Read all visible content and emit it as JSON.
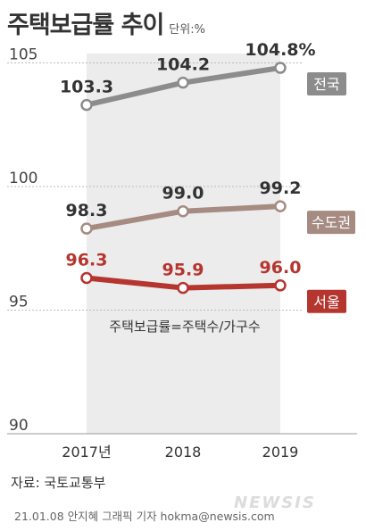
{
  "title": "주택보급률 추이",
  "unit_label": "단위:%",
  "formula_note": "주택보급률=주택수/가구수",
  "source": "자료: 국토교통부",
  "footer": "21.01.08 안지혜 그래픽 기자 hokma@newsis.com",
  "brand": "NEWSIS",
  "colors": {
    "national": "#8c8c8c",
    "capital": "#a58b81",
    "seoul": "#b5352f",
    "shade": "#ececec",
    "grid": "#bbbbbb"
  },
  "chart_data": {
    "type": "line",
    "title": "주택보급률 추이",
    "categories": [
      "2017년",
      "2018",
      "2019"
    ],
    "ylim": [
      90,
      107
    ],
    "yticks": [
      "90",
      "95",
      "100",
      "105"
    ],
    "grid": true,
    "series": [
      {
        "name": "전국",
        "values": [
          103.3,
          104.2,
          104.8
        ],
        "labels": [
          "103.3",
          "104.2",
          "104.8%"
        ],
        "color": "#8c8c8c"
      },
      {
        "name": "수도권",
        "values": [
          98.3,
          99.0,
          99.2
        ],
        "labels": [
          "98.3",
          "99.0",
          "99.2"
        ],
        "color": "#a58b81"
      },
      {
        "name": "서울",
        "values": [
          96.3,
          95.9,
          96.0
        ],
        "labels": [
          "96.3",
          "95.9",
          "96.0"
        ],
        "color": "#b5352f"
      }
    ]
  }
}
